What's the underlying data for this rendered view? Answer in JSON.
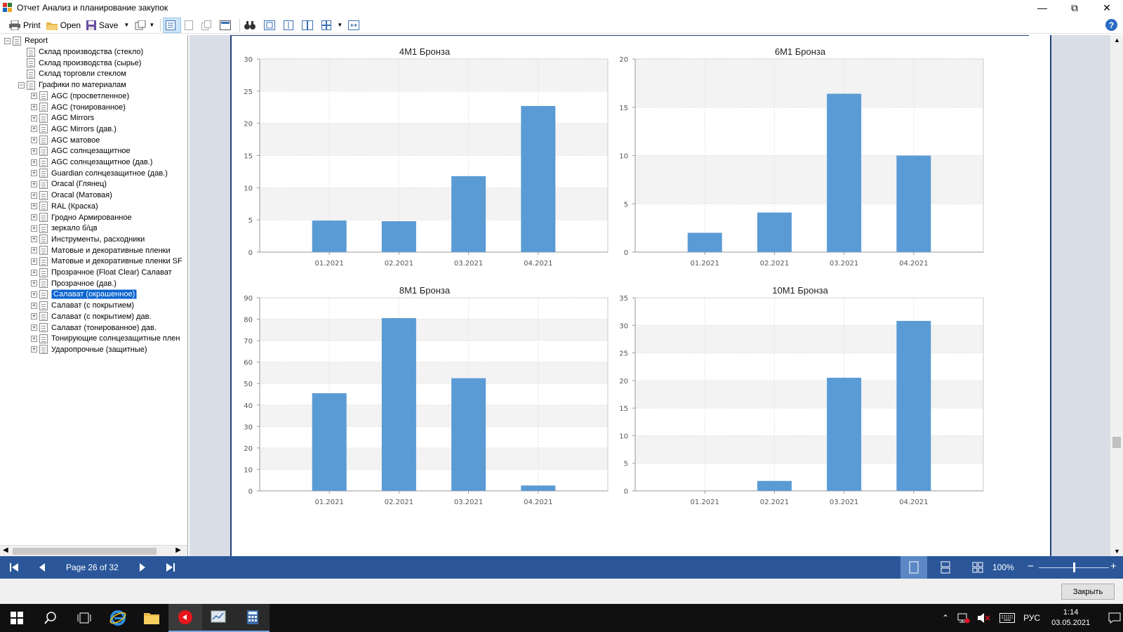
{
  "window": {
    "title": "Отчет Анализ и планирование закупок",
    "controls": [
      "minimize-icon",
      "restore-icon",
      "close-icon"
    ]
  },
  "toolbar": {
    "print_label": "Print",
    "open_label": "Open",
    "save_label": "Save"
  },
  "tree": {
    "root": "Report",
    "items": [
      {
        "label": "Склад производства (стекло)",
        "level": 1,
        "expander": false
      },
      {
        "label": "Склад производства (сырье)",
        "level": 1,
        "expander": false
      },
      {
        "label": "Склад торговли стеклом",
        "level": 1,
        "expander": false
      },
      {
        "label": "Графики по материалам",
        "level": 1,
        "expander": true,
        "expanded": true
      },
      {
        "label": "AGC (просветленное)",
        "level": 2,
        "expander": true
      },
      {
        "label": "AGC (тонированное)",
        "level": 2,
        "expander": true
      },
      {
        "label": "AGC Mirrors",
        "level": 2,
        "expander": true
      },
      {
        "label": "AGC Mirrors (дав.)",
        "level": 2,
        "expander": true
      },
      {
        "label": "AGC матовое",
        "level": 2,
        "expander": true
      },
      {
        "label": "AGC солнцезащитное",
        "level": 2,
        "expander": true
      },
      {
        "label": "AGC солнцезащитное (дав.)",
        "level": 2,
        "expander": true
      },
      {
        "label": "Guardian солнцезащитное (дав.)",
        "level": 2,
        "expander": true
      },
      {
        "label": "Oracal (Глянец)",
        "level": 2,
        "expander": true
      },
      {
        "label": "Oracal (Матовая)",
        "level": 2,
        "expander": true
      },
      {
        "label": "RAL (Краска)",
        "level": 2,
        "expander": true
      },
      {
        "label": "Гродно Армированное",
        "level": 2,
        "expander": true
      },
      {
        "label": "зеркало б/цв",
        "level": 2,
        "expander": true
      },
      {
        "label": "Инструменты, расходники",
        "level": 2,
        "expander": true
      },
      {
        "label": "Матовые и декоративные пленки",
        "level": 2,
        "expander": true
      },
      {
        "label": "Матовые и декоративные пленки SF",
        "level": 2,
        "expander": true
      },
      {
        "label": "Прозрачное (Float Clear) Салават",
        "level": 2,
        "expander": true
      },
      {
        "label": "Прозрачное (дав.)",
        "level": 2,
        "expander": true
      },
      {
        "label": "Салават (окрашенное)",
        "level": 2,
        "expander": true,
        "selected": true
      },
      {
        "label": "Салават (с покрытием)",
        "level": 2,
        "expander": true
      },
      {
        "label": "Салават (с покрытием) дав.",
        "level": 2,
        "expander": true
      },
      {
        "label": "Салават (тонированное) дав.",
        "level": 2,
        "expander": true
      },
      {
        "label": "Тонирующие солнцезащитные плен",
        "level": 2,
        "expander": true
      },
      {
        "label": "Ударопрочные (защитные)",
        "level": 2,
        "expander": true
      }
    ]
  },
  "status": {
    "page_text": "Page 26 of 32",
    "zoom": "100%",
    "zoom_level": 0.5
  },
  "footer": {
    "close_label": "Закрыть"
  },
  "taskbar": {
    "lang": "РУС",
    "time": "1:14",
    "date": "03.05.2021"
  },
  "colors": {
    "bar": "#5b9bd5",
    "statusbar": "#2b579a",
    "page_border": "#23417a"
  },
  "chart_data": [
    {
      "type": "bar",
      "title": "4M1 Бронза",
      "categories": [
        "01.2021",
        "02.2021",
        "03.2021",
        "04.2021"
      ],
      "values": [
        4.9,
        4.8,
        11.8,
        22.7
      ],
      "ylim": [
        0,
        30
      ],
      "yticks": [
        0,
        5,
        10,
        15,
        20,
        25,
        30
      ],
      "grid": true
    },
    {
      "type": "bar",
      "title": "6M1 Бронза",
      "categories": [
        "01.2021",
        "02.2021",
        "03.2021",
        "04.2021"
      ],
      "values": [
        2.0,
        4.1,
        16.4,
        10.0
      ],
      "ylim": [
        0,
        20
      ],
      "yticks": [
        0,
        5,
        10,
        15,
        20
      ],
      "grid": true
    },
    {
      "type": "bar",
      "title": "8M1 Бронза",
      "categories": [
        "01.2021",
        "02.2021",
        "03.2021",
        "04.2021"
      ],
      "values": [
        45.5,
        80.5,
        52.5,
        2.5
      ],
      "ylim": [
        0,
        90
      ],
      "yticks": [
        0,
        10,
        20,
        30,
        40,
        50,
        60,
        70,
        80,
        90
      ],
      "grid": true
    },
    {
      "type": "bar",
      "title": "10M1 Бронза",
      "categories": [
        "01.2021",
        "02.2021",
        "03.2021",
        "04.2021"
      ],
      "values": [
        0,
        1.8,
        20.5,
        30.8
      ],
      "ylim": [
        0,
        35
      ],
      "yticks": [
        0,
        5,
        10,
        15,
        20,
        25,
        30,
        35
      ],
      "grid": true
    }
  ]
}
